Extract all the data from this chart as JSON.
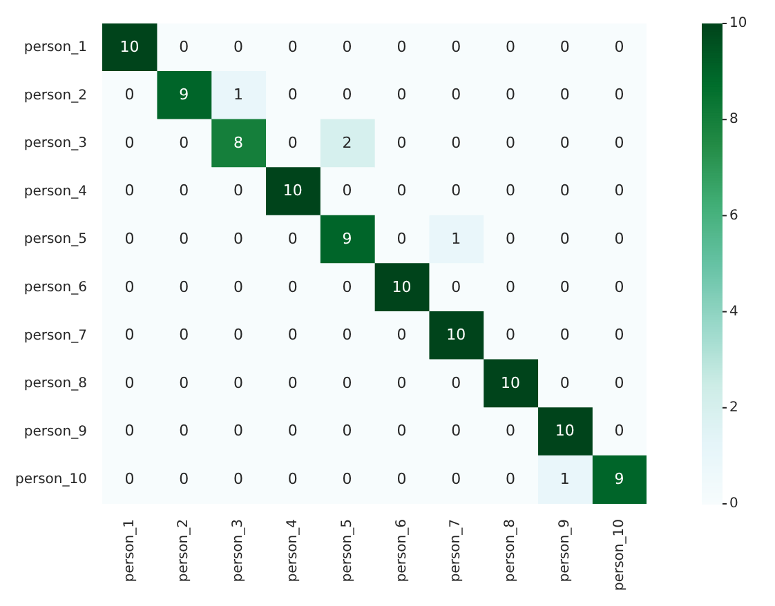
{
  "chart_data": {
    "type": "heatmap",
    "categories": [
      "person_1",
      "person_2",
      "person_3",
      "person_4",
      "person_5",
      "person_6",
      "person_7",
      "person_8",
      "person_9",
      "person_10"
    ],
    "y_categories": [
      "person_1",
      "person_2",
      "person_3",
      "person_4",
      "person_5",
      "person_6",
      "person_7",
      "person_8",
      "person_9",
      "person_10"
    ],
    "cells": [
      [
        10,
        0,
        0,
        0,
        0,
        0,
        0,
        0,
        0,
        0
      ],
      [
        0,
        9,
        1,
        0,
        0,
        0,
        0,
        0,
        0,
        0
      ],
      [
        0,
        0,
        8,
        0,
        2,
        0,
        0,
        0,
        0,
        0
      ],
      [
        0,
        0,
        0,
        10,
        0,
        0,
        0,
        0,
        0,
        0
      ],
      [
        0,
        0,
        0,
        0,
        9,
        0,
        1,
        0,
        0,
        0
      ],
      [
        0,
        0,
        0,
        0,
        0,
        10,
        0,
        0,
        0,
        0
      ],
      [
        0,
        0,
        0,
        0,
        0,
        0,
        10,
        0,
        0,
        0
      ],
      [
        0,
        0,
        0,
        0,
        0,
        0,
        0,
        10,
        0,
        0
      ],
      [
        0,
        0,
        0,
        0,
        0,
        0,
        0,
        0,
        10,
        0
      ],
      [
        0,
        0,
        0,
        0,
        0,
        0,
        0,
        0,
        1,
        9
      ]
    ],
    "clim": [
      0,
      10
    ],
    "cticks": [
      0,
      2,
      4,
      6,
      8,
      10
    ],
    "data_labels": true
  }
}
